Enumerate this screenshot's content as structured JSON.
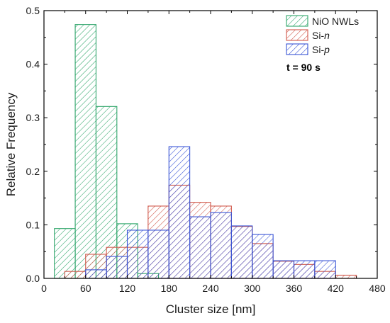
{
  "chart_data": {
    "type": "bar",
    "xlabel": "Cluster size [nm]",
    "ylabel": "Relative Frequency",
    "xlim": [
      0,
      480
    ],
    "ylim": [
      0,
      0.5
    ],
    "xticks": [
      0,
      60,
      120,
      180,
      240,
      300,
      360,
      420,
      480
    ],
    "yticks": [
      0.0,
      0.1,
      0.2,
      0.3,
      0.4,
      0.5
    ],
    "grid": false,
    "legend_position": "top-right",
    "annotation": "t = 90 s",
    "bin_width": 30,
    "series": [
      {
        "name": "NiO NWLs",
        "color": "#2fa56a",
        "bins": [
          {
            "x": 30,
            "value": 0.093
          },
          {
            "x": 60,
            "value": 0.474
          },
          {
            "x": 90,
            "value": 0.321
          },
          {
            "x": 120,
            "value": 0.102
          },
          {
            "x": 150,
            "value": 0.009
          }
        ]
      },
      {
        "name": "Si-n",
        "name_parts": [
          "Si-",
          "n"
        ],
        "color": "#d0584a",
        "bins": [
          {
            "x": 45,
            "value": 0.013
          },
          {
            "x": 75,
            "value": 0.045
          },
          {
            "x": 105,
            "value": 0.058
          },
          {
            "x": 135,
            "value": 0.058
          },
          {
            "x": 165,
            "value": 0.135
          },
          {
            "x": 195,
            "value": 0.174
          },
          {
            "x": 225,
            "value": 0.142
          },
          {
            "x": 255,
            "value": 0.135
          },
          {
            "x": 285,
            "value": 0.097
          },
          {
            "x": 315,
            "value": 0.065
          },
          {
            "x": 345,
            "value": 0.032
          },
          {
            "x": 375,
            "value": 0.026
          },
          {
            "x": 405,
            "value": 0.013
          },
          {
            "x": 435,
            "value": 0.006
          }
        ]
      },
      {
        "name": "Si-p",
        "name_parts": [
          "Si-",
          "p"
        ],
        "color": "#3a55d6",
        "bins": [
          {
            "x": 75,
            "value": 0.016
          },
          {
            "x": 105,
            "value": 0.041
          },
          {
            "x": 135,
            "value": 0.09
          },
          {
            "x": 165,
            "value": 0.09
          },
          {
            "x": 195,
            "value": 0.246
          },
          {
            "x": 225,
            "value": 0.115
          },
          {
            "x": 255,
            "value": 0.123
          },
          {
            "x": 285,
            "value": 0.098
          },
          {
            "x": 315,
            "value": 0.082
          },
          {
            "x": 345,
            "value": 0.033
          },
          {
            "x": 375,
            "value": 0.033
          },
          {
            "x": 405,
            "value": 0.033
          }
        ]
      }
    ]
  }
}
